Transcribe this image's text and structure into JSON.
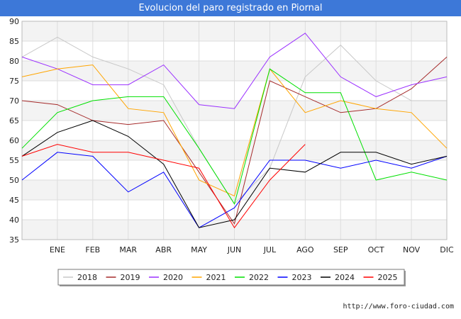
{
  "chart_data": {
    "type": "line",
    "title": "Evolucion del paro registrado en Piornal",
    "xlabel": "",
    "ylabel": "",
    "categories": [
      "",
      "ENE",
      "FEB",
      "MAR",
      "ABR",
      "MAY",
      "JUN",
      "JUL",
      "AGO",
      "SEP",
      "OCT",
      "NOV",
      "DIC"
    ],
    "ylim": [
      35,
      90
    ],
    "yticks": [
      35,
      40,
      45,
      50,
      55,
      60,
      65,
      70,
      75,
      80,
      85,
      90
    ],
    "grid": true,
    "legend_position": "bottom",
    "series": [
      {
        "name": "2018",
        "color": "#c8c8c8",
        "values": [
          81,
          86,
          81,
          78,
          74,
          58,
          44,
          53,
          76,
          84,
          75,
          70,
          70
        ]
      },
      {
        "name": "2019",
        "color": "#a52a2a",
        "values": [
          70,
          69,
          65,
          64,
          65,
          52,
          39,
          75,
          71,
          67,
          68,
          73,
          81
        ]
      },
      {
        "name": "2020",
        "color": "#9b30ff",
        "values": [
          81,
          78,
          74,
          74,
          79,
          69,
          68,
          81,
          87,
          76,
          71,
          74,
          76
        ]
      },
      {
        "name": "2021",
        "color": "#ffa500",
        "values": [
          76,
          78,
          79,
          68,
          67,
          50,
          46,
          78,
          67,
          70,
          68,
          67,
          58
        ]
      },
      {
        "name": "2022",
        "color": "#00e000",
        "values": [
          58,
          67,
          70,
          71,
          71,
          58,
          44,
          78,
          72,
          72,
          50,
          52,
          50
        ]
      },
      {
        "name": "2023",
        "color": "#0000ff",
        "values": [
          50,
          57,
          56,
          47,
          52,
          38,
          43,
          55,
          55,
          53,
          55,
          53,
          56
        ]
      },
      {
        "name": "2024",
        "color": "#000000",
        "values": [
          56,
          62,
          65,
          61,
          54,
          38,
          40,
          53,
          52,
          57,
          57,
          54,
          56
        ]
      },
      {
        "name": "2025",
        "color": "#ff0000",
        "values": [
          56,
          59,
          57,
          57,
          55,
          53,
          38,
          50,
          59,
          null,
          null,
          null,
          null
        ]
      }
    ]
  },
  "footer": {
    "url": "http://www.foro-ciudad.com"
  }
}
